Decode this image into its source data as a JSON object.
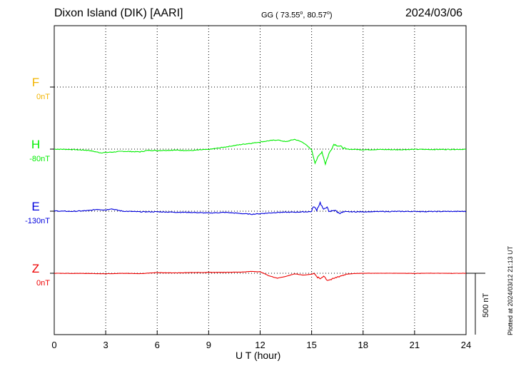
{
  "header": {
    "station": "Dixon Island (DIK)  [AARI]",
    "coords_prefix": "GG ( 73.55",
    "coords_mid": ",  80.57",
    "coords_suffix": ")",
    "deg": "o",
    "date": "2024/03/06"
  },
  "footer": {
    "xlabel": "U T (hour)",
    "plotted": "Plotted at 2024/03/12 21:13 UT",
    "scale_label": "500 nT"
  },
  "colors": {
    "F": "#f2b400",
    "H": "#00ee00",
    "E": "#0000dd",
    "Z": "#ee0000"
  },
  "chart_data": {
    "type": "line",
    "title": "Dixon Island (DIK)  [AARI]",
    "xlabel": "U T (hour)",
    "xlim": [
      0,
      24
    ],
    "xticks": [
      "0",
      "3",
      "6",
      "9",
      "12",
      "15",
      "18",
      "21",
      "24"
    ],
    "scale_nT": 500,
    "components": [
      {
        "name": "F",
        "baseline": "0nT",
        "points": []
      },
      {
        "name": "H",
        "baseline": "-80nT",
        "points": [
          [
            0,
            0
          ],
          [
            1,
            -3
          ],
          [
            2,
            -10
          ],
          [
            2.7,
            -30
          ],
          [
            3.3,
            -25
          ],
          [
            4,
            -18
          ],
          [
            5,
            -22
          ],
          [
            5.5,
            -10
          ],
          [
            6,
            -12
          ],
          [
            7,
            -8
          ],
          [
            8,
            -12
          ],
          [
            8.5,
            -6
          ],
          [
            9,
            -3
          ],
          [
            10,
            18
          ],
          [
            11,
            40
          ],
          [
            11.5,
            48
          ],
          [
            12,
            58
          ],
          [
            12.5,
            68
          ],
          [
            13,
            75
          ],
          [
            13.5,
            60
          ],
          [
            14,
            80
          ],
          [
            14.5,
            55
          ],
          [
            15,
            -5
          ],
          [
            15.2,
            -110
          ],
          [
            15.4,
            -60
          ],
          [
            15.6,
            -20
          ],
          [
            15.8,
            -120
          ],
          [
            16,
            -40
          ],
          [
            16.3,
            40
          ],
          [
            16.7,
            20
          ],
          [
            17,
            0
          ],
          [
            18,
            -5
          ],
          [
            19,
            -3
          ],
          [
            20,
            -5
          ],
          [
            21,
            -2
          ],
          [
            22,
            -3
          ],
          [
            23,
            -2
          ],
          [
            24,
            -2
          ]
        ]
      },
      {
        "name": "E",
        "baseline": "-130nT",
        "points": [
          [
            0,
            2
          ],
          [
            1,
            -2
          ],
          [
            2,
            5
          ],
          [
            2.5,
            15
          ],
          [
            3,
            10
          ],
          [
            3.3,
            20
          ],
          [
            3.7,
            8
          ],
          [
            4,
            0
          ],
          [
            5,
            -5
          ],
          [
            6,
            -5
          ],
          [
            7,
            -8
          ],
          [
            8,
            -10
          ],
          [
            9,
            -15
          ],
          [
            10,
            -10
          ],
          [
            11,
            -20
          ],
          [
            11.5,
            -25
          ],
          [
            12,
            -20
          ],
          [
            12.5,
            -15
          ],
          [
            13,
            -10
          ],
          [
            14,
            -8
          ],
          [
            14.7,
            -5
          ],
          [
            15,
            -3
          ],
          [
            15.1,
            40
          ],
          [
            15.3,
            10
          ],
          [
            15.5,
            70
          ],
          [
            15.7,
            10
          ],
          [
            15.9,
            40
          ],
          [
            16,
            -8
          ],
          [
            16.3,
            10
          ],
          [
            16.6,
            -15
          ],
          [
            17,
            -5
          ],
          [
            18,
            -5
          ],
          [
            19,
            -3
          ],
          [
            20,
            -2
          ],
          [
            21,
            -2
          ],
          [
            22,
            -3
          ],
          [
            23,
            -2
          ],
          [
            24,
            -2
          ]
        ]
      },
      {
        "name": "Z",
        "baseline": "0nT",
        "points": [
          [
            0,
            0
          ],
          [
            2,
            -2
          ],
          [
            3,
            -4
          ],
          [
            4,
            -1
          ],
          [
            5,
            -3
          ],
          [
            6,
            5
          ],
          [
            7,
            3
          ],
          [
            8,
            6
          ],
          [
            9,
            7
          ],
          [
            10,
            8
          ],
          [
            11,
            10
          ],
          [
            11.5,
            15
          ],
          [
            12,
            12
          ],
          [
            12.2,
            0
          ],
          [
            12.5,
            -20
          ],
          [
            13,
            -40
          ],
          [
            13.5,
            -25
          ],
          [
            14,
            -5
          ],
          [
            14.5,
            -15
          ],
          [
            15,
            -8
          ],
          [
            15.1,
            5
          ],
          [
            15.3,
            -30
          ],
          [
            15.5,
            -45
          ],
          [
            15.7,
            -20
          ],
          [
            15.9,
            -55
          ],
          [
            16.2,
            -50
          ],
          [
            16.5,
            -30
          ],
          [
            17,
            -8
          ],
          [
            17.5,
            -2
          ],
          [
            18,
            0
          ],
          [
            19,
            0
          ],
          [
            20,
            0
          ],
          [
            21,
            -1
          ],
          [
            22,
            0
          ],
          [
            23,
            -1
          ],
          [
            24,
            0
          ]
        ]
      }
    ]
  }
}
